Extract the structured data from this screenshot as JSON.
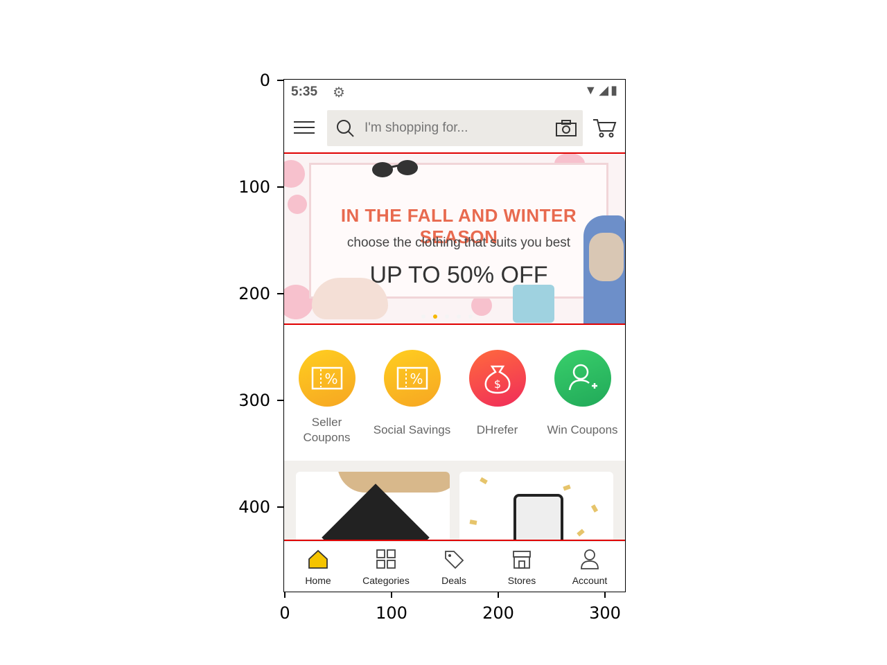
{
  "axes": {
    "y_ticks": [
      "0",
      "100",
      "200",
      "300",
      "400"
    ],
    "x_ticks": [
      "0",
      "100",
      "200",
      "300"
    ]
  },
  "status_bar": {
    "time": "5:35",
    "icons": [
      "gear-icon",
      "wifi-icon",
      "signal-icon",
      "battery-icon"
    ]
  },
  "search": {
    "placeholder": "I'm shopping for..."
  },
  "banner": {
    "title": "IN THE FALL AND WINTER SEASON",
    "subtitle": "choose the clothing that suits you best",
    "offer": "UP TO 50% OFF",
    "active_dot": 2,
    "dot_count": 5
  },
  "quick_links": [
    {
      "label": "Seller Coupons",
      "icon": "coupon-icon",
      "color": "#f9b71c"
    },
    {
      "label": "Social Savings",
      "icon": "coupon-icon",
      "color": "#f9b71c"
    },
    {
      "label": "DHrefer",
      "icon": "money-bag-icon",
      "color": "#f2434f"
    },
    {
      "label": "Win Coupons",
      "icon": "add-user-icon",
      "color": "#2bbd63"
    }
  ],
  "bottom_nav": [
    {
      "label": "Home",
      "icon": "home-icon",
      "active": true
    },
    {
      "label": "Categories",
      "icon": "grid-icon",
      "active": false
    },
    {
      "label": "Deals",
      "icon": "tag-icon",
      "active": false
    },
    {
      "label": "Stores",
      "icon": "store-icon",
      "active": false
    },
    {
      "label": "Account",
      "icon": "user-icon",
      "active": false
    }
  ],
  "colors": {
    "accent": "#f5b800",
    "highlight_lines": "#e00000",
    "banner_title": "#e86a4f"
  }
}
